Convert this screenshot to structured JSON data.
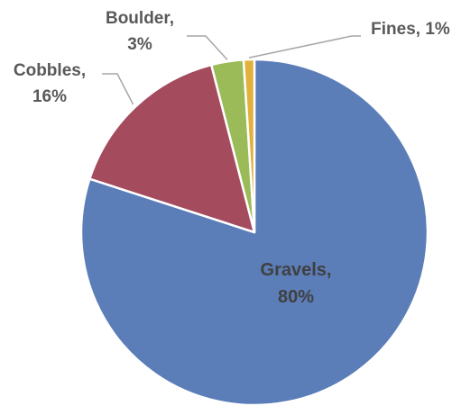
{
  "chart_data": {
    "type": "pie",
    "title": "",
    "slices": [
      {
        "name": "Gravels",
        "value": 80,
        "label_line1": "Gravels,",
        "label_line2": "80%",
        "color": "#5b7db8"
      },
      {
        "name": "Cobbles",
        "value": 16,
        "label_line1": "Cobbles,",
        "label_line2": "16%",
        "color": "#a44b5e"
      },
      {
        "name": "Boulder",
        "value": 3,
        "label_line1": "Boulder,",
        "label_line2": "3%",
        "color": "#9bbb59"
      },
      {
        "name": "Fines",
        "value": 1,
        "label_line1": "Fines, 1%",
        "label_line2": "",
        "color": "#e2b13c"
      }
    ],
    "legend": "none",
    "data_labels": "outside-with-leader-lines",
    "start_angle_deg": 0,
    "direction": "clockwise"
  }
}
